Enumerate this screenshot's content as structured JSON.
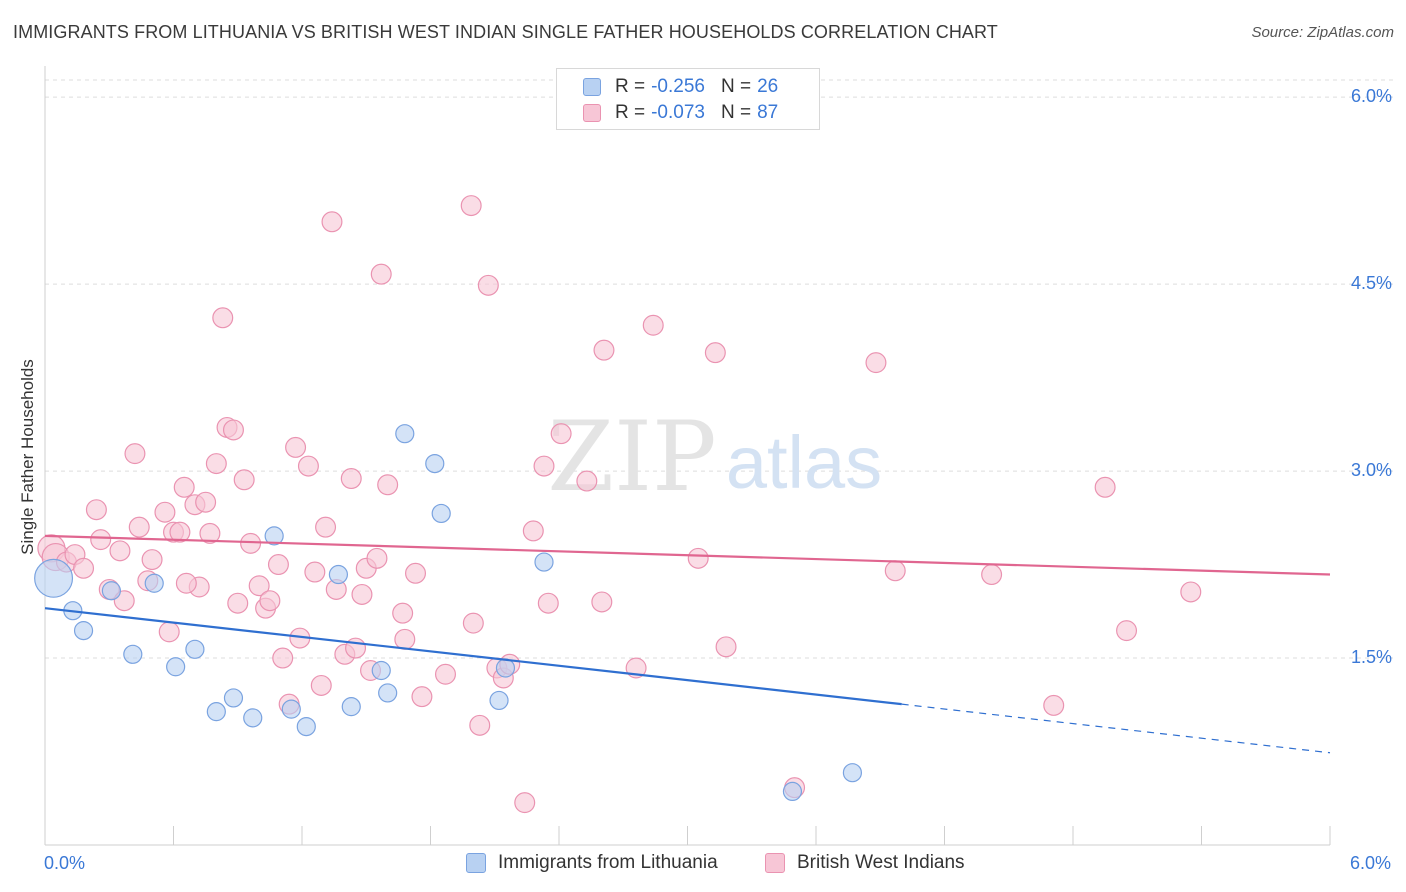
{
  "title": "IMMIGRANTS FROM LITHUANIA VS BRITISH WEST INDIAN SINGLE FATHER HOUSEHOLDS CORRELATION CHART",
  "source": "Source: ZipAtlas.com",
  "watermark": {
    "zip": "ZIP",
    "atlas": "atlas"
  },
  "legend_top": [
    {
      "r_label": "R =",
      "r_value": "-0.256",
      "n_label": "N =",
      "n_value": "26"
    },
    {
      "r_label": "R =",
      "r_value": "-0.073",
      "n_label": "N =",
      "n_value": "87"
    }
  ],
  "legend_bottom": [
    "Immigrants from Lithuania",
    "British West Indians"
  ],
  "colors": {
    "blue_fill": "#b8d1f2",
    "blue_stroke": "#7aa3e0",
    "blue_line": "#2f6fd0",
    "pink_fill": "#f7c6d6",
    "pink_stroke": "#ea93b1",
    "pink_line": "#e06690",
    "tick_text": "#3a78d6",
    "grid": "#dddddd"
  },
  "chart_data": {
    "type": "scatter",
    "ylabel": "Single Father Households",
    "xlabel": "",
    "xlim": [
      0,
      6.0
    ],
    "ylim": [
      0,
      6.2
    ],
    "x_tick_labels": [
      "0.0%",
      "6.0%"
    ],
    "y_ticks": [
      1.5,
      3.0,
      4.5,
      6.0
    ],
    "y_tick_labels": [
      "1.5%",
      "3.0%",
      "4.5%",
      "6.0%"
    ],
    "grid": true,
    "legend_position": "top-center",
    "series": [
      {
        "name": "Immigrants from Lithuania",
        "color": "blue",
        "trend": {
          "x0": 0.0,
          "y0": 1.9,
          "x1_solid": 4.0,
          "y1_solid": 1.13,
          "x_end": 6.0,
          "y_end": 0.74
        },
        "points": [
          [
            0.04,
            2.14,
            1.0
          ],
          [
            0.13,
            1.88,
            0.45
          ],
          [
            0.18,
            1.72,
            0.45
          ],
          [
            0.31,
            2.04,
            0.45
          ],
          [
            0.41,
            1.53,
            0.45
          ],
          [
            0.51,
            2.1,
            0.45
          ],
          [
            0.61,
            1.43,
            0.45
          ],
          [
            0.7,
            1.57,
            0.45
          ],
          [
            0.8,
            1.07,
            0.45
          ],
          [
            0.88,
            1.18,
            0.45
          ],
          [
            0.97,
            1.02,
            0.45
          ],
          [
            1.07,
            2.48,
            0.45
          ],
          [
            1.15,
            1.09,
            0.45
          ],
          [
            1.22,
            0.95,
            0.45
          ],
          [
            1.37,
            2.17,
            0.45
          ],
          [
            1.43,
            1.11,
            0.45
          ],
          [
            1.57,
            1.4,
            0.45
          ],
          [
            1.6,
            1.22,
            0.45
          ],
          [
            1.68,
            3.3,
            0.45
          ],
          [
            1.82,
            3.06,
            0.45
          ],
          [
            1.85,
            2.66,
            0.45
          ],
          [
            2.12,
            1.16,
            0.45
          ],
          [
            2.15,
            1.42,
            0.45
          ],
          [
            2.33,
            2.27,
            0.45
          ],
          [
            3.49,
            0.43,
            0.45
          ],
          [
            3.77,
            0.58,
            0.45
          ]
        ]
      },
      {
        "name": "British West Indians",
        "color": "pink",
        "trend": {
          "x0": 0.0,
          "y0": 2.48,
          "x1_solid": 6.0,
          "y1_solid": 2.17,
          "x_end": 6.0,
          "y_end": 2.17
        },
        "points": [
          [
            0.03,
            2.38,
            0.7
          ],
          [
            0.05,
            2.31,
            0.7
          ],
          [
            0.1,
            2.27,
            0.5
          ],
          [
            0.14,
            2.33,
            0.5
          ],
          [
            0.18,
            2.22,
            0.5
          ],
          [
            0.24,
            2.69,
            0.5
          ],
          [
            0.26,
            2.45,
            0.5
          ],
          [
            0.3,
            2.05,
            0.5
          ],
          [
            0.35,
            2.36,
            0.5
          ],
          [
            0.37,
            1.96,
            0.5
          ],
          [
            0.42,
            3.14,
            0.5
          ],
          [
            0.44,
            2.55,
            0.5
          ],
          [
            0.48,
            2.12,
            0.5
          ],
          [
            0.5,
            2.29,
            0.5
          ],
          [
            0.56,
            2.67,
            0.5
          ],
          [
            0.58,
            1.71,
            0.5
          ],
          [
            0.6,
            2.51,
            0.5
          ],
          [
            0.63,
            2.51,
            0.5
          ],
          [
            0.65,
            2.87,
            0.5
          ],
          [
            0.7,
            2.73,
            0.5
          ],
          [
            0.72,
            2.07,
            0.5
          ],
          [
            0.75,
            2.75,
            0.5
          ],
          [
            0.77,
            2.5,
            0.5
          ],
          [
            0.8,
            3.06,
            0.5
          ],
          [
            0.83,
            4.23,
            0.5
          ],
          [
            0.85,
            3.35,
            0.5
          ],
          [
            0.88,
            3.33,
            0.5
          ],
          [
            0.9,
            1.94,
            0.5
          ],
          [
            0.93,
            2.93,
            0.5
          ],
          [
            0.96,
            2.42,
            0.5
          ],
          [
            1.0,
            2.08,
            0.5
          ],
          [
            1.03,
            1.9,
            0.5
          ],
          [
            1.05,
            1.96,
            0.5
          ],
          [
            1.09,
            2.25,
            0.5
          ],
          [
            1.11,
            1.5,
            0.5
          ],
          [
            1.14,
            1.13,
            0.5
          ],
          [
            1.17,
            3.19,
            0.5
          ],
          [
            1.19,
            1.66,
            0.5
          ],
          [
            1.23,
            3.04,
            0.5
          ],
          [
            1.26,
            2.19,
            0.5
          ],
          [
            1.29,
            1.28,
            0.5
          ],
          [
            1.31,
            2.55,
            0.5
          ],
          [
            1.34,
            5.0,
            0.5
          ],
          [
            1.36,
            2.05,
            0.5
          ],
          [
            1.4,
            1.53,
            0.5
          ],
          [
            1.43,
            2.94,
            0.5
          ],
          [
            1.45,
            1.58,
            0.5
          ],
          [
            1.48,
            2.01,
            0.5
          ],
          [
            1.5,
            2.22,
            0.5
          ],
          [
            1.52,
            1.4,
            0.5
          ],
          [
            1.57,
            4.58,
            0.5
          ],
          [
            1.6,
            2.89,
            0.5
          ],
          [
            1.67,
            1.86,
            0.5
          ],
          [
            1.68,
            1.65,
            0.5
          ],
          [
            1.73,
            2.18,
            0.5
          ],
          [
            1.76,
            1.19,
            0.5
          ],
          [
            1.87,
            1.37,
            0.5
          ],
          [
            1.99,
            5.13,
            0.5
          ],
          [
            2.03,
            0.96,
            0.5
          ],
          [
            2.07,
            4.49,
            0.5
          ],
          [
            2.11,
            1.42,
            0.5
          ],
          [
            2.14,
            1.34,
            0.5
          ],
          [
            2.17,
            1.45,
            0.5
          ],
          [
            2.24,
            0.34,
            0.5
          ],
          [
            2.28,
            2.52,
            0.5
          ],
          [
            2.33,
            3.04,
            0.5
          ],
          [
            2.35,
            1.94,
            0.5
          ],
          [
            2.41,
            3.3,
            0.5
          ],
          [
            2.53,
            2.92,
            0.5
          ],
          [
            2.61,
            3.97,
            0.5
          ],
          [
            2.76,
            1.42,
            0.5
          ],
          [
            2.84,
            4.17,
            0.5
          ],
          [
            3.13,
            3.95,
            0.5
          ],
          [
            3.18,
            1.59,
            0.5
          ],
          [
            3.5,
            0.46,
            0.5
          ],
          [
            3.88,
            3.87,
            0.5
          ],
          [
            3.97,
            2.2,
            0.5
          ],
          [
            4.42,
            2.17,
            0.5
          ],
          [
            4.71,
            1.12,
            0.5
          ],
          [
            4.95,
            2.87,
            0.5
          ],
          [
            5.05,
            1.72,
            0.5
          ],
          [
            5.35,
            2.03,
            0.5
          ],
          [
            2.0,
            1.78,
            0.5
          ],
          [
            1.55,
            2.3,
            0.5
          ],
          [
            0.66,
            2.1,
            0.5
          ],
          [
            2.6,
            1.95,
            0.5
          ],
          [
            3.05,
            2.3,
            0.5
          ]
        ]
      }
    ]
  }
}
